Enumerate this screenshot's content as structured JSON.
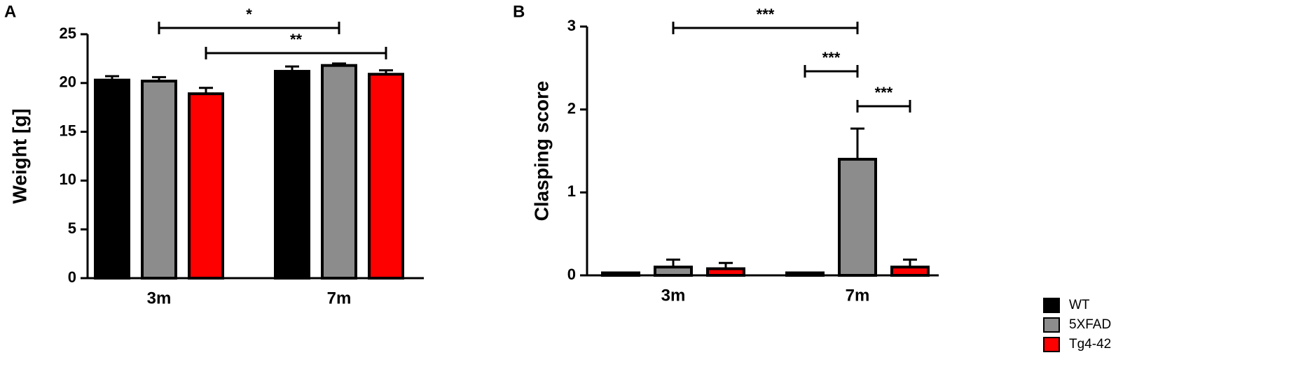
{
  "panels": [
    "A",
    "B"
  ],
  "chart_data": [
    {
      "type": "bar",
      "ylabel": "Weight [g]",
      "categories": [
        "3m",
        "7m"
      ],
      "ylim": [
        0,
        25
      ],
      "yticks": [
        0,
        5,
        10,
        15,
        20,
        25
      ],
      "series": [
        {
          "color": "#000000",
          "values": [
            20.3,
            21.2
          ],
          "errors": [
            0.4,
            0.5
          ]
        },
        {
          "color": "#8c8c8c",
          "values": [
            20.2,
            21.8
          ],
          "errors": [
            0.4,
            0.2
          ]
        },
        {
          "color": "#ff0000",
          "values": [
            18.9,
            20.9
          ],
          "errors": [
            0.6,
            0.4
          ]
        }
      ],
      "annotations": [
        {
          "label": "*",
          "from": {
            "series": 1,
            "category": 0
          },
          "to": {
            "series": 1,
            "category": 1
          }
        },
        {
          "label": "**",
          "from": {
            "series": 2,
            "category": 0
          },
          "to": {
            "series": 2,
            "category": 1
          }
        }
      ]
    },
    {
      "type": "bar",
      "ylabel": "Clasping score",
      "categories": [
        "3m",
        "7m"
      ],
      "ylim": [
        0,
        3
      ],
      "yticks": [
        0,
        1,
        2,
        3
      ],
      "series": [
        {
          "name": "WT",
          "color": "#000000",
          "values": [
            0.03,
            0.03
          ],
          "errors": [
            0,
            0
          ]
        },
        {
          "name": "5XFAD",
          "color": "#8c8c8c",
          "values": [
            0.1,
            1.4
          ],
          "errors": [
            0.09,
            0.37
          ]
        },
        {
          "name": "Tg4-42",
          "color": "#ff0000",
          "values": [
            0.08,
            0.1
          ],
          "errors": [
            0.07,
            0.09
          ]
        }
      ],
      "annotations": [
        {
          "label": "***",
          "from": {
            "series": 1,
            "category": 0
          },
          "to": {
            "series": 1,
            "category": 1
          }
        },
        {
          "label": "***",
          "from": {
            "series": 0,
            "category": 1
          },
          "to": {
            "series": 1,
            "category": 1
          }
        },
        {
          "label": "***",
          "from": {
            "series": 1,
            "category": 1
          },
          "to": {
            "series": 2,
            "category": 1
          }
        }
      ]
    }
  ]
}
